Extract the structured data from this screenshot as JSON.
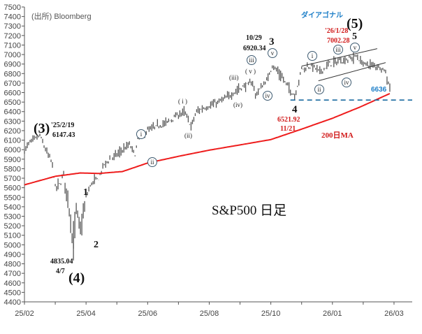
{
  "chart_data": {
    "type": "line",
    "title": "S&P500 日足",
    "source": "(出所) Bloomberg",
    "xlabel": "",
    "ylabel": "",
    "x_unit": "trading days from start",
    "xlim": [
      0,
      277
    ],
    "ylim": [
      4400,
      7500
    ],
    "yticks": [
      4400,
      4500,
      4600,
      4700,
      4800,
      4900,
      5000,
      5100,
      5200,
      5300,
      5400,
      5500,
      5600,
      5700,
      5800,
      5900,
      6000,
      6100,
      6200,
      6300,
      6400,
      6500,
      6600,
      6700,
      6800,
      6900,
      7000,
      7100,
      7200,
      7300,
      7400,
      7500
    ],
    "xtick_labels": [
      "25/02",
      "25/04",
      "25/06",
      "25/08",
      "25/10",
      "26/01",
      "26/03"
    ],
    "xtick_days": [
      0,
      44,
      88,
      132,
      176,
      220,
      264
    ],
    "grid": false,
    "series": [
      {
        "name": "S&P500",
        "color": "#555555",
        "x": [
          0,
          4,
          11,
          15,
          20,
          22,
          26,
          28,
          31,
          35,
          37,
          40,
          42,
          44,
          48,
          53,
          57,
          66,
          75,
          79,
          81,
          88,
          101,
          114,
          119,
          123,
          130,
          136,
          145,
          154,
          163,
          165,
          169,
          174,
          177,
          182,
          189,
          193,
          198,
          206,
          211,
          218,
          224,
          231,
          237,
          242,
          251,
          257,
          261
        ],
        "y": [
          5990,
          6080,
          6147,
          6000,
          5850,
          5600,
          5650,
          5750,
          5500,
          4980,
          5400,
          5150,
          5300,
          5500,
          5650,
          5700,
          5850,
          5950,
          6050,
          5950,
          6100,
          6200,
          6280,
          6400,
          6250,
          6400,
          6450,
          6480,
          6550,
          6650,
          6700,
          6580,
          6650,
          6750,
          6890,
          6800,
          6650,
          6560,
          6850,
          6880,
          6820,
          6900,
          6930,
          6950,
          6980,
          6900,
          6880,
          6850,
          6660
        ]
      },
      {
        "name": "200日MA",
        "color": "#ee1c1c",
        "x": [
          0,
          22,
          40,
          53,
          70,
          88,
          110,
          132,
          154,
          176,
          198,
          220,
          240,
          252,
          261
        ],
        "y": [
          5630,
          5720,
          5755,
          5750,
          5770,
          5860,
          5930,
          5995,
          6050,
          6106,
          6216,
          6330,
          6450,
          6530,
          6590
        ]
      }
    ],
    "reference_lines": [
      {
        "name": "support",
        "value": 6521.92,
        "style": "dashed",
        "color": "#1a6aa0",
        "x_from": 190,
        "x_to": 277
      },
      {
        "name": "diagonal-upper",
        "x": [
          198,
          252
        ],
        "y": [
          6878,
          7062
        ],
        "color": "#333333"
      },
      {
        "name": "diagonal-lower",
        "x": [
          210,
          258
        ],
        "y": [
          6724,
          6915
        ],
        "color": "#333333"
      }
    ],
    "annotations": {
      "wave3_major": "(3)",
      "wave3_date": "'25/2/19",
      "wave3_value": "6147.43",
      "wave4_major": "(4)",
      "wave4_value": "4835.04",
      "wave4_date": "4/7",
      "w1": "1",
      "w2": "2",
      "w3": "3",
      "w4": "4",
      "w5": "5",
      "wave5_major": "(5)",
      "w3_date": "10/29",
      "w3_value": "6920.34",
      "w4_value": "6521.92",
      "w4_date": "11/21",
      "w5_date": "'26/1/28",
      "w5_value": "7002.28",
      "diagonal": "ダイアゴナル",
      "last_value": "6636",
      "ma_label": "200日MA",
      "sub_i": "i",
      "sub_ii": "ii",
      "sub_iii": "iii",
      "sub_iv": "iv",
      "sub_v": "v",
      "paren_i": "( i )",
      "paren_ii": "(ii)",
      "paren_iii": "(iii)",
      "paren_iv": "(iv)",
      "paren_v": "( v )"
    }
  },
  "colors": {
    "price": "#555555",
    "ma": "#ee1c1c",
    "support": "#1a6aa0",
    "red_text": "#d11a1a",
    "blue_text": "#1e7fc8"
  }
}
